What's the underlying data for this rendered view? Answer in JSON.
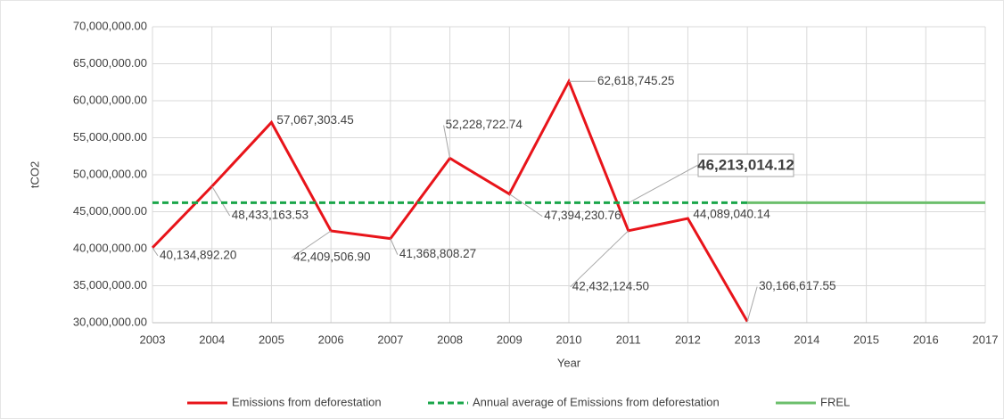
{
  "chart_data": {
    "type": "line",
    "y_label": "tCO2",
    "x_label": "Year",
    "xlim": [
      2003,
      2017
    ],
    "xticks": [
      2003,
      2004,
      2005,
      2006,
      2007,
      2008,
      2009,
      2010,
      2011,
      2012,
      2013,
      2014,
      2015,
      2016,
      2017
    ],
    "ylim": [
      30000000,
      70000000
    ],
    "yticks": [
      {
        "value": 30000000,
        "label": "30,000,000.00"
      },
      {
        "value": 35000000,
        "label": "35,000,000.00"
      },
      {
        "value": 40000000,
        "label": "40,000,000.00"
      },
      {
        "value": 45000000,
        "label": "45,000,000.00"
      },
      {
        "value": 50000000,
        "label": "50,000,000.00"
      },
      {
        "value": 55000000,
        "label": "55,000,000.00"
      },
      {
        "value": 60000000,
        "label": "60,000,000.00"
      },
      {
        "value": 65000000,
        "label": "65,000,000.00"
      },
      {
        "value": 70000000,
        "label": "70,000,000.00"
      }
    ],
    "grid": true,
    "legend": "bottom",
    "series": [
      {
        "name": "Emissions from deforestation",
        "color": "#e8141a",
        "style": "solid",
        "x": [
          2003,
          2004,
          2005,
          2006,
          2007,
          2008,
          2009,
          2010,
          2011,
          2012,
          2013
        ],
        "values": [
          40134892.2,
          48433163.53,
          57067303.45,
          42409506.9,
          41368808.27,
          52228722.74,
          47394230.76,
          62618745.25,
          42432124.5,
          44089040.14,
          30166617.55
        ],
        "value_labels": [
          "40,134,892.20",
          "48,433,163.53",
          "57,067,303.45",
          "42,409,506.90",
          "41,368,808.27",
          "52,228,722.74",
          "47,394,230.76",
          "62,618,745.25",
          "42,432,124.50",
          "44,089,040.14",
          "30,166,617.55"
        ]
      },
      {
        "name": "Annual average of Emissions from deforestation",
        "color": "#1aa64a",
        "style": "dashed",
        "x": [
          2003,
          2013
        ],
        "values": [
          46213014.12,
          46213014.12
        ],
        "value_labels": [
          null,
          "46,213,014.12"
        ]
      },
      {
        "name": "FREL",
        "color": "#6cbf6c",
        "style": "solid",
        "x": [
          2013,
          2017
        ],
        "values": [
          46213014.12,
          46213014.12
        ]
      }
    ]
  }
}
